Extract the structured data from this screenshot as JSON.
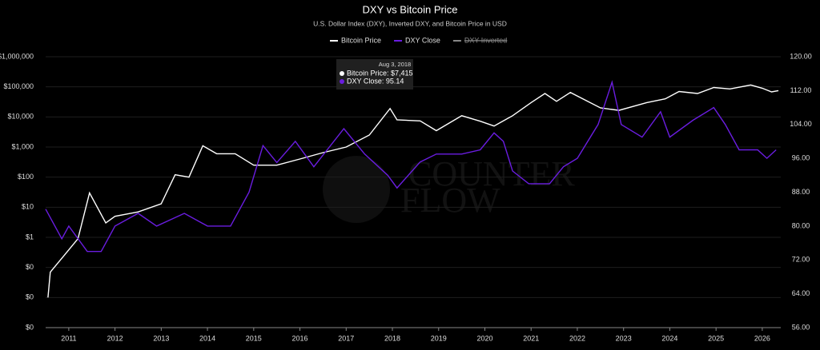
{
  "chart_data": {
    "type": "line",
    "title": "DXY vs Bitcoin Price",
    "subtitle": "U.S. Dollar Index (DXY), Inverted DXY, and Bitcoin Price in USD",
    "watermark": [
      "COUNTER",
      "FLOW"
    ],
    "xlim": [
      2010.5,
      2026.4
    ],
    "xticks": [
      2011,
      2012,
      2013,
      2014,
      2015,
      2016,
      2017,
      2018,
      2019,
      2020,
      2021,
      2022,
      2023,
      2024,
      2025,
      2026
    ],
    "ylim": [
      0.001,
      1000000
    ],
    "log_scale": true,
    "yticks": [
      {
        "value": 0.001,
        "label": "$0"
      },
      {
        "value": 0.01,
        "label": "$0"
      },
      {
        "value": 0.1,
        "label": "$0"
      },
      {
        "value": 1,
        "label": "$1"
      },
      {
        "value": 10,
        "label": "$10"
      },
      {
        "value": 100,
        "label": "$100"
      },
      {
        "value": 1000,
        "label": "$1,000"
      },
      {
        "value": 10000,
        "label": "$10,000"
      },
      {
        "value": 100000,
        "label": "$100,000"
      },
      {
        "value": 1000000,
        "label": "$1,000,000"
      }
    ],
    "y2lim": [
      56,
      120
    ],
    "y2ticks": [
      {
        "value": 56,
        "label": "56.00"
      },
      {
        "value": 64,
        "label": "64.00"
      },
      {
        "value": 72,
        "label": "72.00"
      },
      {
        "value": 80,
        "label": "80.00"
      },
      {
        "value": 88,
        "label": "88.00"
      },
      {
        "value": 96,
        "label": "96.00"
      },
      {
        "value": 104,
        "label": "104.00"
      },
      {
        "value": 112,
        "label": "112.00"
      },
      {
        "value": 120,
        "label": "120.00"
      }
    ],
    "grid": true,
    "series": [
      {
        "name": "Bitcoin Price",
        "color": "#ffffff",
        "axis": "y",
        "x": [
          2010.55,
          2010.6,
          2010.9,
          2011.2,
          2011.45,
          2011.8,
          2012.0,
          2012.5,
          2013.0,
          2013.3,
          2013.6,
          2013.9,
          2014.2,
          2014.6,
          2015.0,
          2015.5,
          2016.0,
          2016.5,
          2017.0,
          2017.5,
          2017.95,
          2018.1,
          2018.6,
          2018.95,
          2019.5,
          2019.9,
          2020.2,
          2020.6,
          2021.0,
          2021.3,
          2021.55,
          2021.85,
          2022.5,
          2022.9,
          2023.5,
          2023.9,
          2024.2,
          2024.6,
          2024.95,
          2025.3,
          2025.75,
          2026.0,
          2026.2,
          2026.35
        ],
        "values": [
          0.01,
          0.07,
          0.25,
          0.9,
          30,
          3,
          5,
          7,
          13,
          120,
          100,
          1100,
          600,
          600,
          250,
          250,
          400,
          650,
          1000,
          2500,
          19000,
          8000,
          7400,
          3500,
          11000,
          7200,
          5000,
          11000,
          30000,
          60000,
          33000,
          65000,
          20000,
          16500,
          30000,
          40000,
          70000,
          60000,
          95000,
          85000,
          115000,
          90000,
          68000,
          75000
        ]
      },
      {
        "name": "DXY Close",
        "color": "#6a1de0",
        "axis": "y2",
        "x": [
          2010.5,
          2010.6,
          2010.85,
          2011.0,
          2011.4,
          2011.7,
          2012.0,
          2012.5,
          2012.9,
          2013.5,
          2014.0,
          2014.5,
          2014.9,
          2015.2,
          2015.5,
          2015.9,
          2016.3,
          2016.95,
          2017.4,
          2017.9,
          2018.1,
          2018.6,
          2018.95,
          2019.5,
          2019.9,
          2020.2,
          2020.4,
          2020.6,
          2020.95,
          2021.4,
          2021.7,
          2022.0,
          2022.45,
          2022.75,
          2022.95,
          2023.4,
          2023.8,
          2024.0,
          2024.5,
          2024.95,
          2025.2,
          2025.5,
          2025.9,
          2026.1,
          2026.3
        ],
        "values": [
          84,
          82,
          77,
          80,
          74,
          74,
          80,
          83,
          80,
          83,
          80,
          80,
          88,
          99,
          95,
          100,
          94,
          103,
          97,
          92,
          89,
          95.14,
          97,
          97,
          98,
          102,
          100,
          93,
          90,
          90,
          94,
          96,
          104,
          114,
          104,
          101,
          107,
          101,
          105,
          108,
          104,
          98,
          98,
          96,
          98
        ]
      }
    ],
    "legend_hidden": [
      {
        "name": "DXY Inverted",
        "color": "#888888"
      }
    ],
    "tooltip": {
      "date": "Aug 3, 2018",
      "lines": [
        "Bitcoin Price: $7,415",
        "DXY Close: 95.14"
      ]
    }
  }
}
